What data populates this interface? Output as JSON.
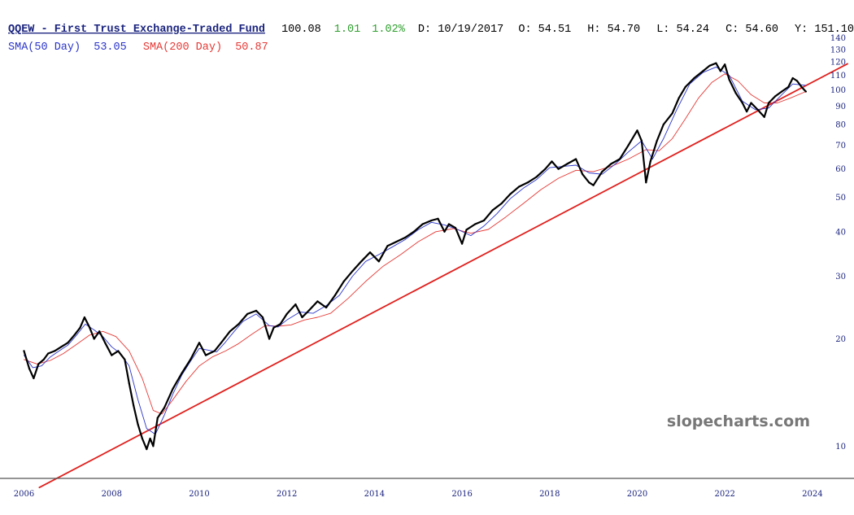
{
  "header": {
    "title": "QQEW - First Trust Exchange-Traded Fund",
    "last": "100.08",
    "change": "1.01",
    "change_pct": "1.02%",
    "date": "D: 10/19/2017",
    "open": "O:  54.51",
    "high": "H:  54.70",
    "low": "L:  54.24",
    "close": "C:  54.60",
    "volume": "Y: 151.10"
  },
  "indicators": {
    "sma50_label": "SMA(50 Day)",
    "sma50_value": "53.05",
    "sma200_label": "SMA(200 Day)",
    "sma200_value": "50.87"
  },
  "watermark": "slopecharts.com",
  "colors": {
    "title": "#1a237e",
    "change_up": "#2e9e2e",
    "price": "#000000",
    "sma50": "#2a34c8",
    "sma200": "#e53935",
    "trendline": "#e0201d",
    "axis": "#555555"
  },
  "chart_data": {
    "type": "line",
    "scale": "log",
    "ylim": [
      8.2,
      145
    ],
    "xlim": [
      2005.6,
      2024.8
    ],
    "y_ticks": [
      10,
      20,
      30,
      40,
      50,
      60,
      70,
      80,
      90,
      100,
      110,
      120,
      130,
      140
    ],
    "x_ticks": [
      "2006",
      "2008",
      "2010",
      "2012",
      "2014",
      "2016",
      "2018",
      "2020",
      "2022",
      "2024"
    ],
    "series": [
      {
        "key": "price",
        "x": [
          2006.0,
          2006.12,
          2006.22,
          2006.33,
          2006.45,
          2006.55,
          2006.7,
          2006.85,
          2007.0,
          2007.15,
          2007.28,
          2007.38,
          2007.5,
          2007.6,
          2007.72,
          2007.85,
          2008.0,
          2008.15,
          2008.3,
          2008.4,
          2008.5,
          2008.6,
          2008.7,
          2008.8,
          2008.88,
          2008.95,
          2009.05,
          2009.2,
          2009.4,
          2009.6,
          2009.8,
          2010.0,
          2010.15,
          2010.35,
          2010.5,
          2010.7,
          2010.9,
          2011.1,
          2011.3,
          2011.45,
          2011.6,
          2011.7,
          2011.85,
          2012.0,
          2012.2,
          2012.35,
          2012.5,
          2012.7,
          2012.9,
          2013.1,
          2013.3,
          2013.5,
          2013.7,
          2013.9,
          2014.1,
          2014.3,
          2014.5,
          2014.7,
          2014.9,
          2015.1,
          2015.3,
          2015.45,
          2015.6,
          2015.7,
          2015.85,
          2016.0,
          2016.1,
          2016.3,
          2016.5,
          2016.7,
          2016.9,
          2017.1,
          2017.3,
          2017.5,
          2017.7,
          2017.9,
          2018.05,
          2018.2,
          2018.4,
          2018.6,
          2018.75,
          2018.9,
          2019.0,
          2019.2,
          2019.4,
          2019.6,
          2019.8,
          2020.0,
          2020.1,
          2020.2,
          2020.3,
          2020.45,
          2020.6,
          2020.8,
          2020.95,
          2021.1,
          2021.3,
          2021.5,
          2021.65,
          2021.8,
          2021.9,
          2022.0,
          2022.1,
          2022.25,
          2022.4,
          2022.5,
          2022.6,
          2022.75,
          2022.9,
          2023.0,
          2023.15,
          2023.3,
          2023.45,
          2023.55,
          2023.65,
          2023.75,
          2023.85
        ],
        "values": [
          18.5,
          16.5,
          15.5,
          17.0,
          17.5,
          18.2,
          18.5,
          19.0,
          19.5,
          20.5,
          21.5,
          23.0,
          21.5,
          20.0,
          21.0,
          19.5,
          18.0,
          18.5,
          17.5,
          15.0,
          13.0,
          11.5,
          10.5,
          9.8,
          10.5,
          10.0,
          12.0,
          12.8,
          14.5,
          16.0,
          17.5,
          19.5,
          18.0,
          18.5,
          19.5,
          21.0,
          22.0,
          23.5,
          24.0,
          23.0,
          20.0,
          21.5,
          22.0,
          23.5,
          25.0,
          23.0,
          24.0,
          25.5,
          24.5,
          26.5,
          29.0,
          31.0,
          33.0,
          35.0,
          33.0,
          36.5,
          37.5,
          38.5,
          40.0,
          42.0,
          43.0,
          43.5,
          40.0,
          42.0,
          41.0,
          37.0,
          40.5,
          42.0,
          43.0,
          46.0,
          48.0,
          51.0,
          53.5,
          55.0,
          57.0,
          60.0,
          63.0,
          60.0,
          62.0,
          64.0,
          58.0,
          55.0,
          54.0,
          59.0,
          62.0,
          64.0,
          70.0,
          77.0,
          72.0,
          55.0,
          63.0,
          72.0,
          80.0,
          86.0,
          95.0,
          102.0,
          108.0,
          113.0,
          117.0,
          119.0,
          113.0,
          118.0,
          107.0,
          98.0,
          92.0,
          87.0,
          92.0,
          88.0,
          84.0,
          92.0,
          96.0,
          99.0,
          102.0,
          108.0,
          106.0,
          102.0,
          99.0
        ]
      },
      {
        "key": "sma50",
        "name": "SMA(50 Day)",
        "x": [
          2006.0,
          2006.2,
          2006.4,
          2006.6,
          2006.8,
          2007.0,
          2007.2,
          2007.4,
          2007.6,
          2007.8,
          2008.0,
          2008.2,
          2008.4,
          2008.6,
          2008.8,
          2009.0,
          2009.2,
          2009.4,
          2009.6,
          2009.8,
          2010.0,
          2010.2,
          2010.4,
          2010.6,
          2010.8,
          2011.0,
          2011.3,
          2011.6,
          2011.8,
          2012.0,
          2012.3,
          2012.6,
          2012.9,
          2013.2,
          2013.5,
          2013.8,
          2014.1,
          2014.4,
          2014.7,
          2015.0,
          2015.3,
          2015.6,
          2015.9,
          2016.2,
          2016.5,
          2016.8,
          2017.1,
          2017.4,
          2017.7,
          2018.0,
          2018.3,
          2018.6,
          2018.9,
          2019.2,
          2019.5,
          2019.8,
          2020.1,
          2020.35,
          2020.6,
          2020.9,
          2021.2,
          2021.5,
          2021.8,
          2022.1,
          2022.4,
          2022.7,
          2023.0,
          2023.3,
          2023.55,
          2023.85
        ],
        "values": [
          18.0,
          16.6,
          16.8,
          17.8,
          18.5,
          19.2,
          20.5,
          22.0,
          21.2,
          20.3,
          19.0,
          18.2,
          16.8,
          13.5,
          11.2,
          10.8,
          12.2,
          14.0,
          15.8,
          17.3,
          18.8,
          18.6,
          18.4,
          19.6,
          21.0,
          22.4,
          23.5,
          21.8,
          21.6,
          22.6,
          23.8,
          23.6,
          24.8,
          26.5,
          30.0,
          33.0,
          34.5,
          36.2,
          38.0,
          40.5,
          42.5,
          41.8,
          40.6,
          39.0,
          41.5,
          45.0,
          49.5,
          53.0,
          56.0,
          60.5,
          61.0,
          61.5,
          58.5,
          58.0,
          62.0,
          67.0,
          72.0,
          64.0,
          73.0,
          88.0,
          104.0,
          112.0,
          116.0,
          110.0,
          93.0,
          88.0,
          89.0,
          97.0,
          104.0,
          103.0
        ]
      },
      {
        "key": "sma200",
        "name": "SMA(200 Day)",
        "x": [
          2006.0,
          2006.3,
          2006.6,
          2006.9,
          2007.2,
          2007.5,
          2007.8,
          2008.1,
          2008.4,
          2008.7,
          2008.95,
          2009.15,
          2009.4,
          2009.7,
          2010.0,
          2010.3,
          2010.6,
          2010.9,
          2011.2,
          2011.5,
          2011.8,
          2012.1,
          2012.4,
          2012.7,
          2013.0,
          2013.4,
          2013.8,
          2014.2,
          2014.6,
          2015.0,
          2015.4,
          2015.8,
          2016.2,
          2016.6,
          2017.0,
          2017.4,
          2017.8,
          2018.2,
          2018.6,
          2019.0,
          2019.4,
          2019.8,
          2020.2,
          2020.5,
          2020.8,
          2021.1,
          2021.4,
          2021.7,
          2022.0,
          2022.3,
          2022.6,
          2022.9,
          2023.2,
          2023.5,
          2023.85
        ],
        "values": [
          17.5,
          17.0,
          17.4,
          18.2,
          19.3,
          20.5,
          21.0,
          20.3,
          18.5,
          15.5,
          12.6,
          12.3,
          13.5,
          15.2,
          16.8,
          17.8,
          18.5,
          19.4,
          20.6,
          21.8,
          21.7,
          21.9,
          22.6,
          23.0,
          23.6,
          26.0,
          29.0,
          32.0,
          34.5,
          37.5,
          40.0,
          40.8,
          39.6,
          40.6,
          44.0,
          48.0,
          52.5,
          56.5,
          59.5,
          59.0,
          61.0,
          64.0,
          68.0,
          67.5,
          73.0,
          83.0,
          95.0,
          105.0,
          111.0,
          106.0,
          97.0,
          92.0,
          92.0,
          95.0,
          99.0
        ]
      },
      {
        "key": "trend",
        "x": [
          2006.35,
          2024.8
        ],
        "values": [
          7.65,
          118.5
        ]
      }
    ]
  }
}
